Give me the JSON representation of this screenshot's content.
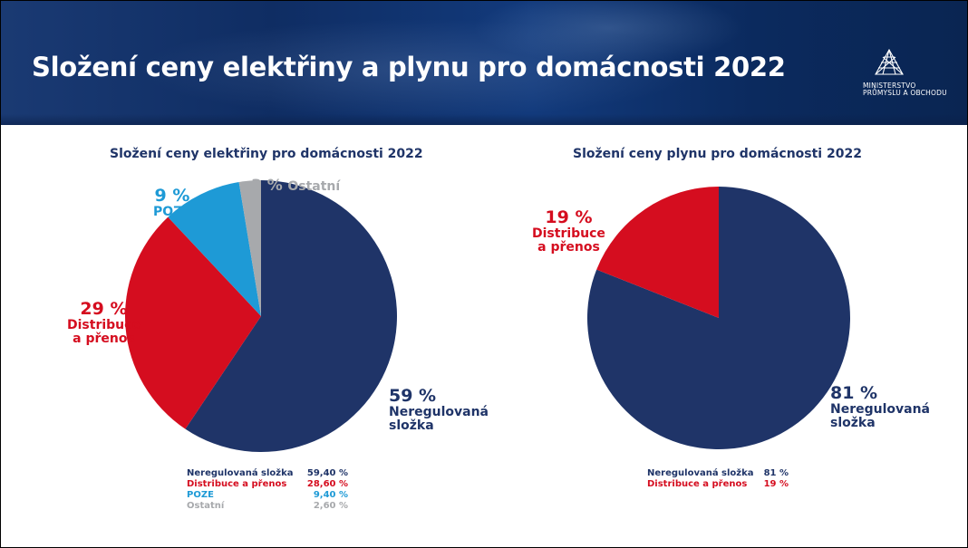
{
  "title": "Složení ceny elektřiny a plynu pro domácnosti 2022",
  "logo": {
    "line1": "MINISTERSTVO",
    "line2": "PRŮMYSLU A OBCHODU"
  },
  "colors": {
    "navy": "#1f3468",
    "red": "#d50d1f",
    "blue": "#1e9ad6",
    "gray": "#a7a9ac"
  },
  "chart_data": [
    {
      "type": "pie",
      "title": "Složení ceny elektřiny pro domácnosti 2022",
      "slices": [
        {
          "name": "Neregulovaná složka",
          "label_pct": "59 %",
          "label_name": [
            "Neregulovaná",
            "složka"
          ],
          "value": 59.4,
          "legend_value": "59,40 %",
          "color": "#1f3468"
        },
        {
          "name": "Distribuce a přenos",
          "label_pct": "29 %",
          "label_name": [
            "Distribuce",
            "a přenos"
          ],
          "value": 28.6,
          "legend_value": "28,60 %",
          "color": "#d50d1f"
        },
        {
          "name": "POZE",
          "label_pct": "9 %",
          "label_name": [
            "POZE"
          ],
          "value": 9.4,
          "legend_value": "9,40 %",
          "color": "#1e9ad6"
        },
        {
          "name": "Ostatní",
          "label_pct": "3 %",
          "label_name": [
            "Ostatní"
          ],
          "value": 2.6,
          "legend_value": "2,60 %",
          "color": "#a7a9ac"
        }
      ]
    },
    {
      "type": "pie",
      "title": "Složení ceny plynu pro domácnosti 2022",
      "slices": [
        {
          "name": "Neregulovaná složka",
          "label_pct": "81 %",
          "label_name": [
            "Neregulovaná",
            "složka"
          ],
          "value": 81,
          "legend_value": "81 %",
          "color": "#1f3468"
        },
        {
          "name": "Distribuce a přenos",
          "label_pct": "19 %",
          "label_name": [
            "Distribuce",
            "a přenos"
          ],
          "value": 19,
          "legend_value": "19 %",
          "color": "#d50d1f"
        }
      ]
    }
  ]
}
